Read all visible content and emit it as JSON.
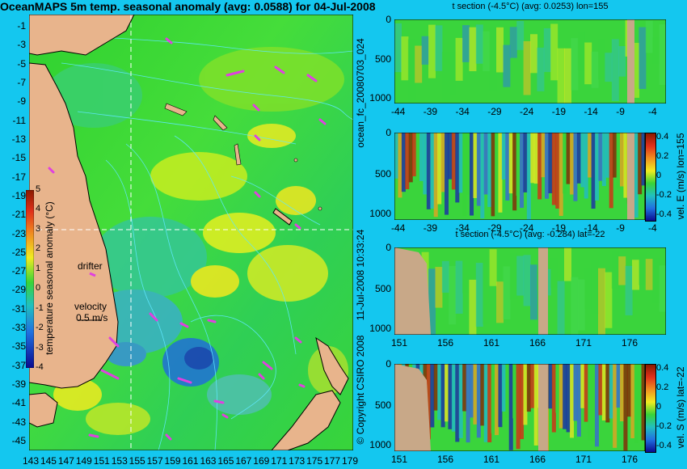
{
  "title": "OceanMAPS 5m temp. seasonal anomaly (avg: 0.0588) for 04-Jul-2008",
  "map": {
    "lat_ticks": [
      "-1",
      "-3",
      "-5",
      "-7",
      "-9",
      "-11",
      "-13",
      "-15",
      "-17",
      "-19",
      "-21",
      "-23",
      "-25",
      "-27",
      "-29",
      "-31",
      "-33",
      "-35",
      "-37",
      "-39",
      "-41",
      "-43",
      "-45"
    ],
    "lon_ticks": [
      "143",
      "145",
      "147",
      "149",
      "151",
      "153",
      "155",
      "157",
      "159",
      "161",
      "163",
      "165",
      "167",
      "169",
      "171",
      "173",
      "175",
      "177",
      "179"
    ],
    "drifter_label": "drifter",
    "velocity_label": "velocity",
    "velocity_value": "0.5 m/s",
    "colorbar": {
      "label": "temperature seasonal anomaly (°C)",
      "ticks": [
        "5",
        "4",
        "3",
        "2",
        "1",
        "0",
        "-1",
        "-2",
        "-3",
        "-4"
      ]
    },
    "land_color": "#e8b48c",
    "ocean_color": "#33d633",
    "drifter_color": "#e040e0",
    "contour_color": "#5fe8ff",
    "section_line_color": "#ffffff"
  },
  "panels": [
    {
      "title": "t section (-4.5°C) (avg: 0.0253) lon=155",
      "x_ticks": [
        "-44",
        "-39",
        "-34",
        "-29",
        "-24",
        "-19",
        "-14",
        "-9",
        "-4"
      ],
      "y_ticks": [
        "0",
        "500",
        "1000"
      ]
    },
    {
      "title": "",
      "x_ticks": [
        "-44",
        "-39",
        "-34",
        "-29",
        "-24",
        "-19",
        "-14",
        "-9",
        "-4"
      ],
      "y_ticks": [
        "0",
        "500",
        "1000"
      ],
      "colorbar_label": "vel. E (m/s) lon=155",
      "colorbar_ticks": [
        "0.4",
        "0.2",
        "0",
        "-0.2",
        "-0.4"
      ]
    },
    {
      "title": "t section (-4.5°C) (avg: -0.284) lat=-22",
      "x_ticks": [
        "151",
        "156",
        "161",
        "166",
        "171",
        "176"
      ],
      "y_ticks": [
        "0",
        "500",
        "1000"
      ]
    },
    {
      "title": "",
      "x_ticks": [
        "151",
        "156",
        "161",
        "166",
        "171",
        "176"
      ],
      "y_ticks": [
        "0",
        "500",
        "1000"
      ],
      "colorbar_label": "vel. S (m/s) lat=-22",
      "colorbar_ticks": [
        "0.4",
        "0.2",
        "0",
        "-0.2",
        "-0.4"
      ]
    }
  ],
  "side_labels": {
    "forecast": "ocean_fc_20080703_024",
    "date": "11-Jul-2008 10:33:24",
    "copyright": "© Copyright CSIRO 2008"
  }
}
